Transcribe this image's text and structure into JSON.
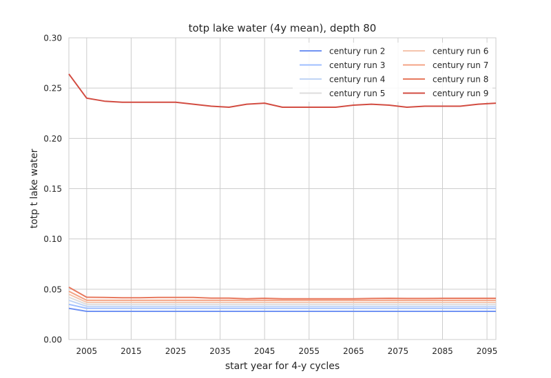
{
  "chart_data": {
    "type": "line",
    "title": "totp lake water (4y mean), depth 80",
    "xlabel": "start year for 4-y cycles",
    "ylabel": "totp t lake water",
    "xlim": [
      2001,
      2097
    ],
    "ylim": [
      0.0,
      0.3
    ],
    "xticks": [
      2005,
      2015,
      2025,
      2035,
      2045,
      2055,
      2065,
      2075,
      2085,
      2095
    ],
    "yticks": [
      0.0,
      0.05,
      0.1,
      0.15,
      0.2,
      0.25,
      0.3
    ],
    "ytick_labels": [
      "0.00",
      "0.05",
      "0.10",
      "0.15",
      "0.20",
      "0.25",
      "0.30"
    ],
    "grid": true,
    "legend_position": "top-right",
    "legend_columns": 2,
    "x": [
      2001,
      2005,
      2009,
      2013,
      2017,
      2021,
      2025,
      2029,
      2033,
      2037,
      2041,
      2045,
      2049,
      2053,
      2057,
      2061,
      2065,
      2069,
      2073,
      2077,
      2081,
      2085,
      2089,
      2093,
      2097
    ],
    "series": [
      {
        "name": "century run 2",
        "color": "#6f92f3",
        "values": [
          0.031,
          0.028,
          0.028,
          0.028,
          0.028,
          0.028,
          0.028,
          0.028,
          0.028,
          0.028,
          0.028,
          0.028,
          0.028,
          0.028,
          0.028,
          0.028,
          0.028,
          0.028,
          0.028,
          0.028,
          0.028,
          0.028,
          0.028,
          0.028,
          0.028
        ]
      },
      {
        "name": "century run 3",
        "color": "#9ebeff",
        "values": [
          0.035,
          0.031,
          0.031,
          0.031,
          0.031,
          0.031,
          0.031,
          0.031,
          0.031,
          0.031,
          0.031,
          0.031,
          0.031,
          0.031,
          0.031,
          0.031,
          0.031,
          0.031,
          0.031,
          0.031,
          0.031,
          0.031,
          0.031,
          0.031,
          0.031
        ]
      },
      {
        "name": "century run 4",
        "color": "#c0d4f5",
        "values": [
          0.039,
          0.033,
          0.033,
          0.033,
          0.033,
          0.033,
          0.033,
          0.033,
          0.033,
          0.033,
          0.033,
          0.033,
          0.033,
          0.033,
          0.033,
          0.033,
          0.033,
          0.033,
          0.033,
          0.033,
          0.033,
          0.033,
          0.033,
          0.033,
          0.033
        ]
      },
      {
        "name": "century run 5",
        "color": "#dddcdc",
        "values": [
          0.042,
          0.035,
          0.035,
          0.035,
          0.035,
          0.035,
          0.035,
          0.035,
          0.035,
          0.035,
          0.035,
          0.035,
          0.035,
          0.035,
          0.035,
          0.035,
          0.035,
          0.035,
          0.035,
          0.035,
          0.035,
          0.035,
          0.035,
          0.035,
          0.035
        ]
      },
      {
        "name": "century run 6",
        "color": "#f5c4ac",
        "values": [
          0.045,
          0.037,
          0.037,
          0.037,
          0.037,
          0.037,
          0.037,
          0.037,
          0.037,
          0.037,
          0.037,
          0.037,
          0.037,
          0.037,
          0.037,
          0.037,
          0.037,
          0.037,
          0.037,
          0.037,
          0.037,
          0.037,
          0.037,
          0.037,
          0.037
        ]
      },
      {
        "name": "century run 7",
        "color": "#f4a384",
        "values": [
          0.048,
          0.039,
          0.039,
          0.039,
          0.039,
          0.039,
          0.039,
          0.039,
          0.039,
          0.039,
          0.039,
          0.039,
          0.039,
          0.039,
          0.039,
          0.039,
          0.039,
          0.039,
          0.039,
          0.039,
          0.039,
          0.039,
          0.039,
          0.039,
          0.039
        ]
      },
      {
        "name": "century run 8",
        "color": "#e7785d",
        "values": [
          0.052,
          0.042,
          0.0418,
          0.0415,
          0.0415,
          0.0418,
          0.0418,
          0.0418,
          0.0412,
          0.0412,
          0.0405,
          0.041,
          0.0405,
          0.0405,
          0.0405,
          0.0405,
          0.0405,
          0.0408,
          0.041,
          0.0408,
          0.0408,
          0.041,
          0.041,
          0.041,
          0.041
        ]
      },
      {
        "name": "century run 9",
        "color": "#d24b40",
        "values": [
          0.264,
          0.24,
          0.237,
          0.236,
          0.236,
          0.236,
          0.236,
          0.234,
          0.232,
          0.231,
          0.234,
          0.235,
          0.231,
          0.231,
          0.231,
          0.231,
          0.233,
          0.234,
          0.233,
          0.231,
          0.232,
          0.232,
          0.232,
          0.234,
          0.235
        ]
      }
    ]
  }
}
